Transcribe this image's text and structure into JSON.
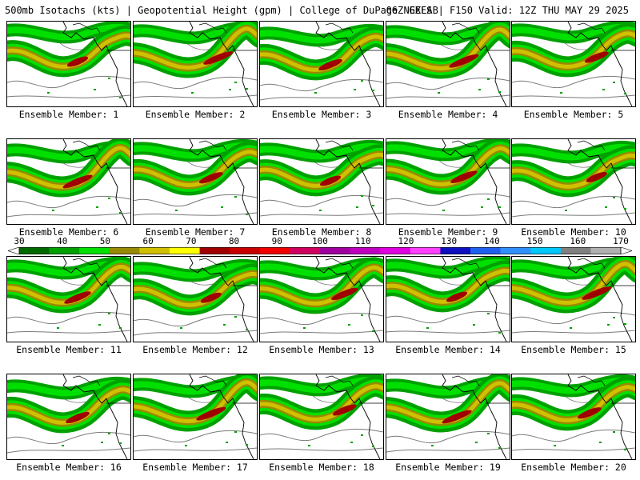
{
  "header": {
    "left": "500mb Isotachs (kts) | Geopotential Height (gpm) | College of DuPage NEXLAB",
    "right": "06Z GEFS | F150 Valid: 12Z THU MAY 29 2025"
  },
  "members": [
    {
      "label": "Ensemble Member: 1"
    },
    {
      "label": "Ensemble Member: 2"
    },
    {
      "label": "Ensemble Member: 3"
    },
    {
      "label": "Ensemble Member: 4"
    },
    {
      "label": "Ensemble Member: 5"
    },
    {
      "label": "Ensemble Member: 6"
    },
    {
      "label": "Ensemble Member: 7"
    },
    {
      "label": "Ensemble Member: 8"
    },
    {
      "label": "Ensemble Member: 9"
    },
    {
      "label": "Ensemble Member: 10"
    },
    {
      "label": "Ensemble Member: 11"
    },
    {
      "label": "Ensemble Member: 12"
    },
    {
      "label": "Ensemble Member: 13"
    },
    {
      "label": "Ensemble Member: 14"
    },
    {
      "label": "Ensemble Member: 15"
    },
    {
      "label": "Ensemble Member: 16"
    },
    {
      "label": "Ensemble Member: 17"
    },
    {
      "label": "Ensemble Member: 18"
    },
    {
      "label": "Ensemble Member: 19"
    },
    {
      "label": "Ensemble Member: 20"
    }
  ],
  "colorbar": {
    "labels": [
      "30",
      "40",
      "50",
      "60",
      "70",
      "80",
      "90",
      "100",
      "110",
      "120",
      "130",
      "140",
      "150",
      "160",
      "170"
    ],
    "colors": [
      "#006a00",
      "#00a000",
      "#00e000",
      "#988a00",
      "#d0c000",
      "#ffff00",
      "#a00000",
      "#c80000",
      "#f00000",
      "#d00060",
      "#a000a0",
      "#c000c0",
      "#e000e0",
      "#ff40ff",
      "#1010c0",
      "#2060f0",
      "#3090ff",
      "#00c8ff",
      "#808080",
      "#b0b0b0"
    ],
    "jet_colors": {
      "outer": "#00a000",
      "light": "#00e000",
      "olive": "#988a00",
      "yellow": "#d0c000",
      "core": "#a00000"
    }
  }
}
